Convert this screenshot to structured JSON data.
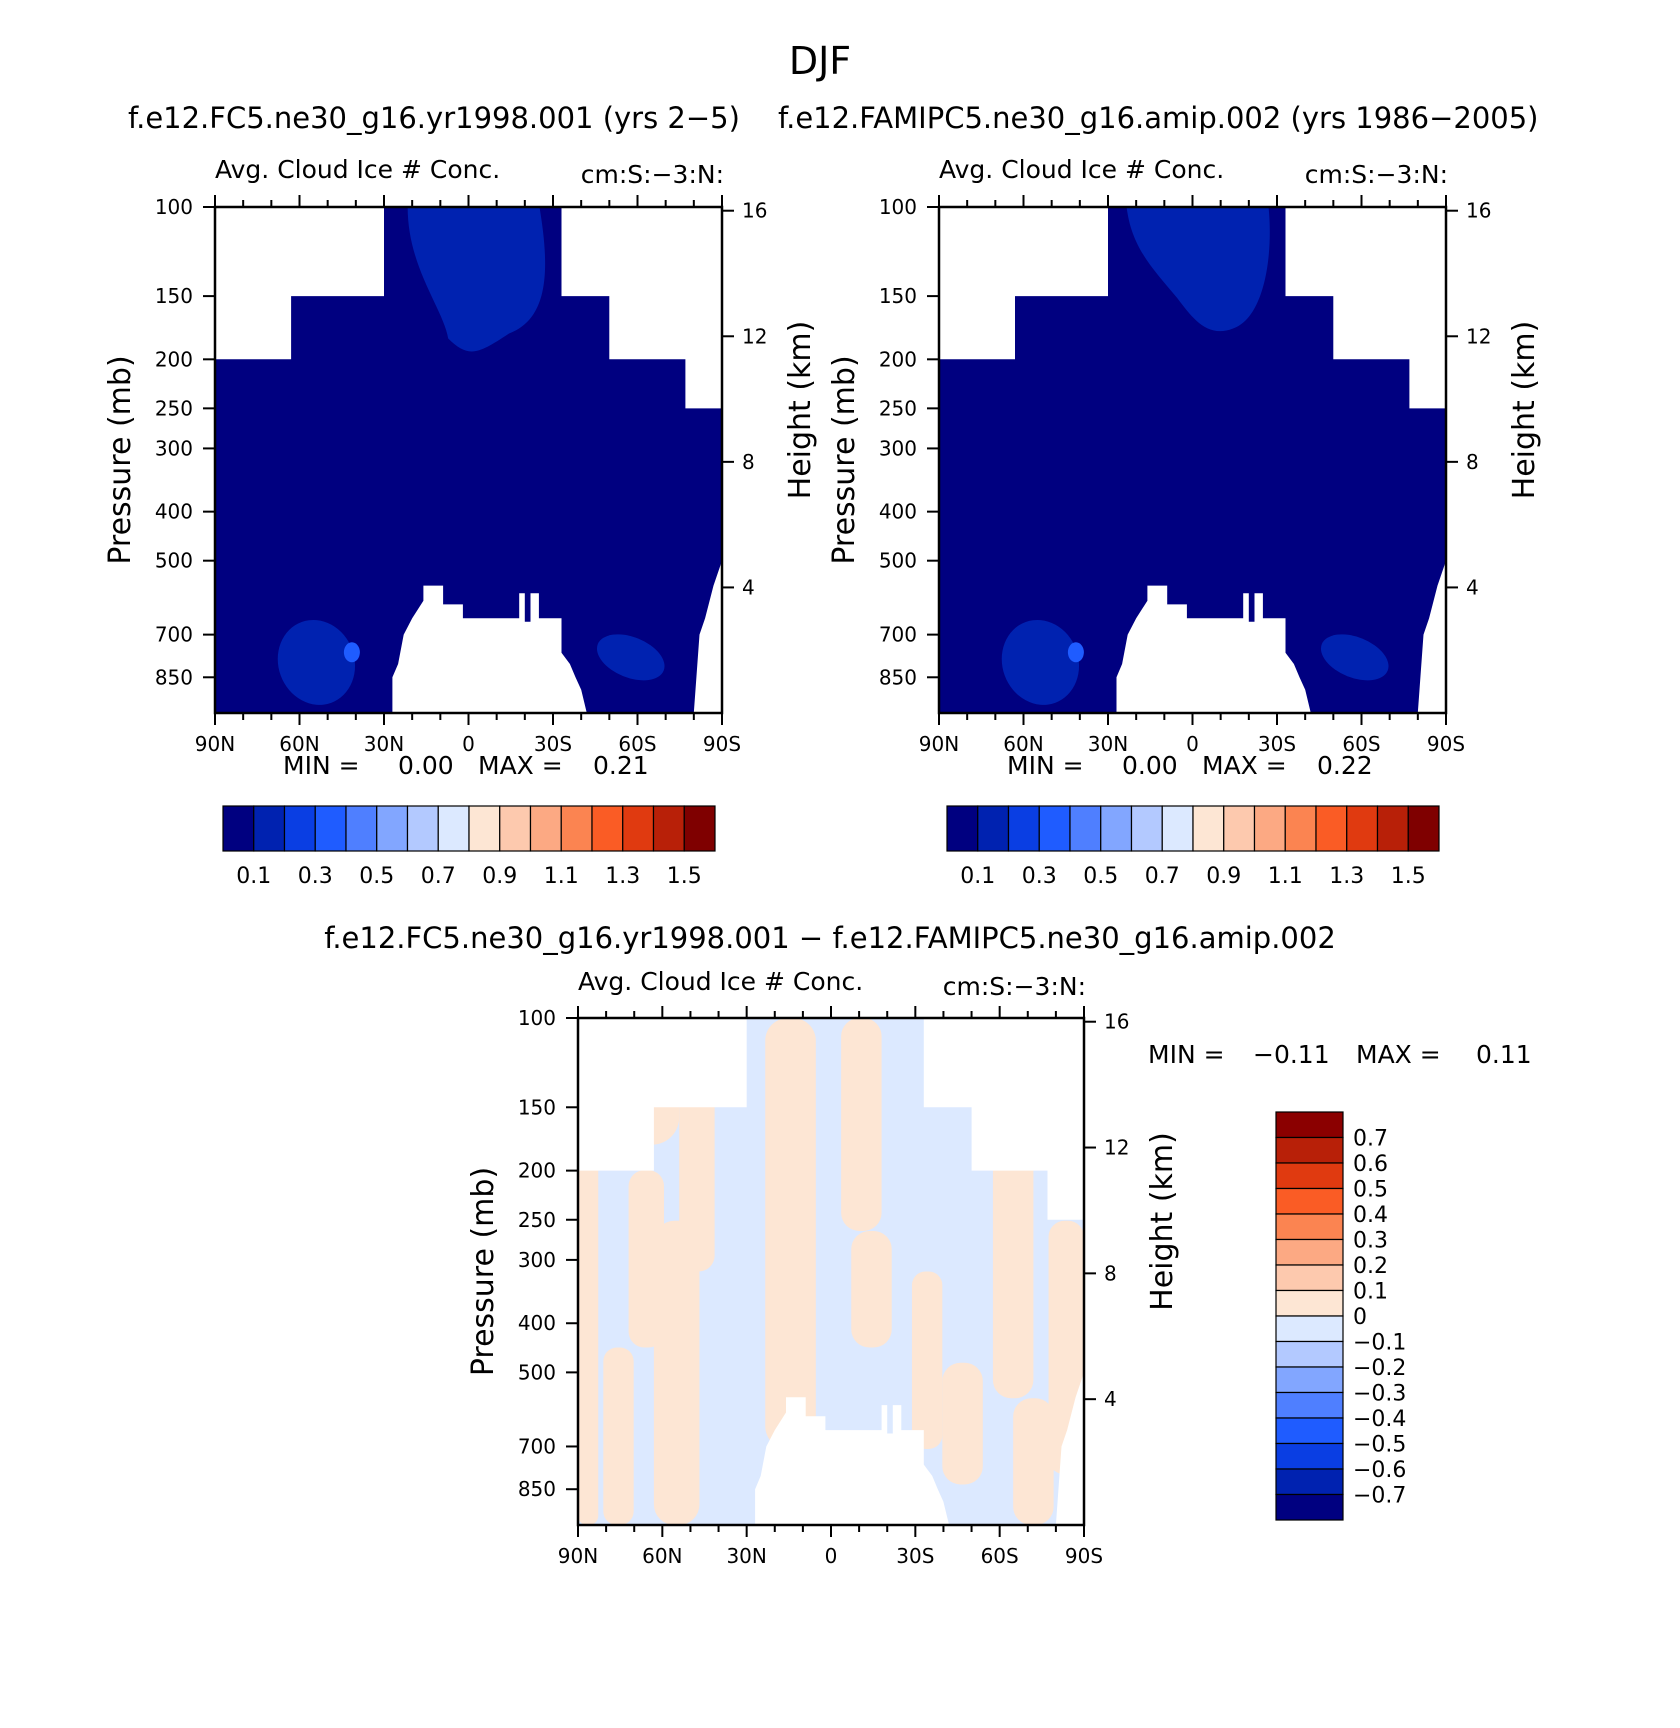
{
  "figure": {
    "title": "DJF"
  },
  "chart_data": [
    {
      "type": "heatmap",
      "title": "f.e12.FC5.ne30_g16.yr1998.001 (yrs 2-5)",
      "subtitle_left": "Avg. Cloud Ice # Conc.",
      "subtitle_right": "cm:S:-3:N:",
      "ylabel": "Pressure (mb)",
      "ylabel_right": "Height (km)",
      "x_ticks": [
        "90N",
        "60N",
        "30N",
        "0",
        "30S",
        "60S",
        "90S"
      ],
      "x_range": [
        90,
        -90
      ],
      "y_ticks": [
        100,
        150,
        200,
        250,
        300,
        400,
        500,
        700,
        850
      ],
      "y_range_mb": [
        100,
        1000
      ],
      "y_scale": "log",
      "height_ticks_km": [
        16,
        12,
        8,
        4
      ],
      "stats": {
        "min_label": "MIN =",
        "min": "0.00",
        "max_label": "MAX =",
        "max": "0.21"
      },
      "colorbar": {
        "orientation": "horizontal",
        "labels": [
          "0.1",
          "0.3",
          "0.5",
          "0.7",
          "0.9",
          "1.1",
          "1.3",
          "1.5"
        ],
        "colors": [
          "#000080",
          "#0022b0",
          "#0a3ee3",
          "#1f5cff",
          "#4f7fff",
          "#82a6ff",
          "#b3c9ff",
          "#dce9ff",
          "#fde6d4",
          "#fdc9ae",
          "#fca983",
          "#fb8451",
          "#fa5c25",
          "#e03a10",
          "#b82008",
          "#7f0000"
        ]
      },
      "field_colors": {
        "background": "#000080",
        "patch": "#0022b0",
        "core": "#1f5cff"
      }
    },
    {
      "type": "heatmap",
      "title": "f.e12.FAMIPC5.ne30_g16.amip.002 (yrs 1986-2005)",
      "subtitle_left": "Avg. Cloud Ice # Conc.",
      "subtitle_right": "cm:S:-3:N:",
      "ylabel": "Pressure (mb)",
      "ylabel_right": "Height (km)",
      "x_ticks": [
        "90N",
        "60N",
        "30N",
        "0",
        "30S",
        "60S",
        "90S"
      ],
      "x_range": [
        90,
        -90
      ],
      "y_ticks": [
        100,
        150,
        200,
        250,
        300,
        400,
        500,
        700,
        850
      ],
      "y_range_mb": [
        100,
        1000
      ],
      "y_scale": "log",
      "height_ticks_km": [
        16,
        12,
        8,
        4
      ],
      "stats": {
        "min_label": "MIN =",
        "min": "0.00",
        "max_label": "MAX =",
        "max": "0.22"
      },
      "colorbar": {
        "orientation": "horizontal",
        "labels": [
          "0.1",
          "0.3",
          "0.5",
          "0.7",
          "0.9",
          "1.1",
          "1.3",
          "1.5"
        ],
        "colors": [
          "#000080",
          "#0022b0",
          "#0a3ee3",
          "#1f5cff",
          "#4f7fff",
          "#82a6ff",
          "#b3c9ff",
          "#dce9ff",
          "#fde6d4",
          "#fdc9ae",
          "#fca983",
          "#fb8451",
          "#fa5c25",
          "#e03a10",
          "#b82008",
          "#7f0000"
        ]
      },
      "field_colors": {
        "background": "#000080",
        "patch": "#0022b0",
        "core": "#1f5cff"
      }
    },
    {
      "type": "heatmap",
      "title": "f.e12.FC5.ne30_g16.yr1998.001 - f.e12.FAMIPC5.ne30_g16.amip.002",
      "subtitle_left": "Avg. Cloud Ice # Conc.",
      "subtitle_right": "cm:S:-3:N:",
      "ylabel": "Pressure (mb)",
      "ylabel_right": "Height (km)",
      "x_ticks": [
        "90N",
        "60N",
        "30N",
        "0",
        "30S",
        "60S",
        "90S"
      ],
      "x_range": [
        90,
        -90
      ],
      "y_ticks": [
        100,
        150,
        200,
        250,
        300,
        400,
        500,
        700,
        850
      ],
      "y_range_mb": [
        100,
        1000
      ],
      "y_scale": "log",
      "height_ticks_km": [
        16,
        12,
        8,
        4
      ],
      "stats": {
        "min_label": "MIN =",
        "min": "-0.11",
        "max_label": "MAX =",
        "max": "0.11"
      },
      "colorbar": {
        "orientation": "vertical",
        "labels": [
          "0.7",
          "0.6",
          "0.5",
          "0.4",
          "0.3",
          "0.2",
          "0.1",
          "0",
          "-0.1",
          "-0.2",
          "-0.3",
          "-0.4",
          "-0.5",
          "-0.6",
          "-0.7"
        ],
        "colors": [
          "#8b0000",
          "#b82008",
          "#e03a10",
          "#fa5c25",
          "#fb8451",
          "#fca983",
          "#fdc9ae",
          "#fde6d4",
          "#dce9ff",
          "#b3c9ff",
          "#82a6ff",
          "#4f7fff",
          "#1f5cff",
          "#0a3ee3",
          "#0022b0",
          "#000080"
        ]
      },
      "field_colors": {
        "positive": "#fde6d4",
        "negative": "#dce9ff"
      }
    }
  ]
}
